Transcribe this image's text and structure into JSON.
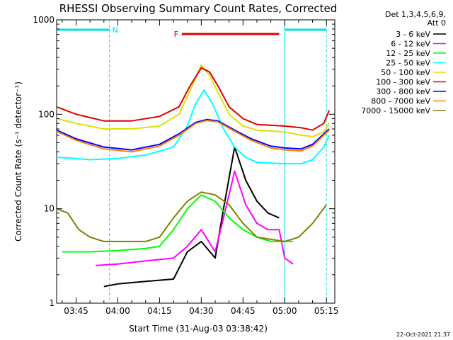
{
  "chart_data": {
    "type": "line",
    "title": "RHESSI Observing Summary Count Rates, Corrected",
    "xlabel": "Start Time (31-Aug-03 03:38:42)",
    "ylabel": "Corrected Count Rate (s⁻¹ detector⁻¹)",
    "yscale": "log",
    "ylim": [
      1,
      1000
    ],
    "xlim": [
      "03:38",
      "05:18"
    ],
    "x_ticks": [
      "03:45",
      "04:00",
      "04:15",
      "04:30",
      "04:45",
      "05:00",
      "05:15"
    ],
    "y_ticks": [
      "1",
      "10",
      "100",
      "1000"
    ],
    "legend_header": [
      "Det 1,3,4,5,6,9,",
      "Att 0"
    ],
    "legend_position": "right",
    "footer": "22-Oct-2021 21:37",
    "flags": [
      {
        "label": "N",
        "color": "#00e0e0",
        "spans": [
          [
            "03:38",
            "03:57"
          ],
          [
            "05:00",
            "05:15"
          ]
        ]
      },
      {
        "label": "F",
        "color": "#e00000",
        "spans": [
          [
            "04:23",
            "04:58"
          ]
        ]
      }
    ],
    "vertical_markers": [
      {
        "time": "03:57",
        "style": "dashed",
        "color": "#00e0e0"
      },
      {
        "time": "05:00",
        "style": "solid",
        "color": "#00e0e0"
      },
      {
        "time": "05:15",
        "style": "dashed",
        "color": "#00e0e0"
      }
    ],
    "series": [
      {
        "name": "3 - 6 keV",
        "color": "#000000",
        "x": [
          "03:55",
          "04:00",
          "04:10",
          "04:20",
          "04:25",
          "04:30",
          "04:35",
          "04:38",
          "04:42",
          "04:46",
          "04:50",
          "04:54",
          "04:58"
        ],
        "y": [
          1.5,
          1.6,
          1.7,
          1.8,
          3.5,
          4.5,
          3,
          10,
          45,
          20,
          12,
          9,
          8
        ]
      },
      {
        "name": "6 - 12 keV",
        "color": "#ff00ff",
        "x": [
          "03:52",
          "04:00",
          "04:10",
          "04:20",
          "04:25",
          "04:30",
          "04:35",
          "04:38",
          "04:42",
          "04:46",
          "04:50",
          "04:54",
          "04:58",
          "05:00",
          "05:03"
        ],
        "y": [
          2.5,
          2.6,
          2.8,
          3,
          4,
          6,
          3.5,
          8,
          25,
          11,
          7,
          6,
          6,
          3,
          2.6
        ]
      },
      {
        "name": "12 - 25 keV",
        "color": "#00ff00",
        "x": [
          "03:40",
          "03:50",
          "04:00",
          "04:10",
          "04:15",
          "04:20",
          "04:25",
          "04:30",
          "04:35",
          "04:40",
          "04:45",
          "04:50",
          "04:55",
          "05:00",
          "05:03"
        ],
        "y": [
          3.5,
          3.5,
          3.6,
          3.8,
          4,
          6,
          10,
          14,
          12,
          8,
          6,
          5,
          4.5,
          4.5,
          4.5
        ]
      },
      {
        "name": "25 - 50 keV",
        "color": "#00ffff",
        "x": [
          "03:38",
          "03:45",
          "03:50",
          "04:00",
          "04:10",
          "04:20",
          "04:25",
          "04:28",
          "04:31",
          "04:34",
          "04:38",
          "04:42",
          "04:46",
          "04:50",
          "05:00",
          "05:06",
          "05:10",
          "05:14",
          "05:16"
        ],
        "y": [
          35,
          34,
          33,
          34,
          37,
          45,
          75,
          130,
          180,
          130,
          70,
          45,
          35,
          31,
          30,
          30,
          33,
          45,
          60
        ]
      },
      {
        "name": "50 - 100 keV",
        "color": "#e0e000",
        "x": [
          "03:38",
          "03:45",
          "03:55",
          "04:05",
          "04:15",
          "04:22",
          "04:26",
          "04:30",
          "04:33",
          "04:36",
          "04:40",
          "04:45",
          "04:50",
          "05:00",
          "05:06",
          "05:10",
          "05:14",
          "05:16"
        ],
        "y": [
          90,
          80,
          70,
          70,
          75,
          100,
          180,
          330,
          260,
          170,
          100,
          75,
          68,
          65,
          60,
          58,
          65,
          80
        ]
      },
      {
        "name": "100 - 300 keV",
        "color": "#e00000",
        "x": [
          "03:38",
          "03:45",
          "03:55",
          "04:05",
          "04:15",
          "04:22",
          "04:26",
          "04:30",
          "04:33",
          "04:36",
          "04:40",
          "04:45",
          "04:50",
          "05:00",
          "05:06",
          "05:10",
          "05:14",
          "05:16"
        ],
        "y": [
          120,
          100,
          85,
          85,
          95,
          120,
          200,
          310,
          280,
          200,
          120,
          90,
          78,
          75,
          72,
          68,
          80,
          110
        ]
      },
      {
        "name": "300 - 800 keV",
        "color": "#0000ff",
        "x": [
          "03:38",
          "03:45",
          "03:55",
          "04:05",
          "04:15",
          "04:22",
          "04:28",
          "04:32",
          "04:36",
          "04:42",
          "04:48",
          "04:55",
          "05:00",
          "05:06",
          "05:10",
          "05:16"
        ],
        "y": [
          68,
          55,
          45,
          42,
          48,
          62,
          82,
          88,
          85,
          68,
          55,
          46,
          44,
          43,
          48,
          70
        ]
      },
      {
        "name": "800 - 7000 keV",
        "color": "#ff8000",
        "x": [
          "03:38",
          "03:45",
          "03:55",
          "04:05",
          "04:15",
          "04:22",
          "04:28",
          "04:32",
          "04:36",
          "04:42",
          "04:48",
          "04:55",
          "05:00",
          "05:06",
          "05:10",
          "05:16"
        ],
        "y": [
          66,
          53,
          43,
          40,
          46,
          60,
          80,
          86,
          83,
          66,
          53,
          44,
          42,
          41,
          46,
          68
        ]
      },
      {
        "name": "7000 - 15000 keV",
        "color": "#808000",
        "x": [
          "03:38",
          "03:42",
          "03:46",
          "03:50",
          "03:55",
          "04:00",
          "04:10",
          "04:15",
          "04:20",
          "04:25",
          "04:30",
          "04:35",
          "04:40",
          "04:45",
          "04:50",
          "05:00",
          "05:05",
          "05:10",
          "05:15"
        ],
        "y": [
          10,
          9,
          6,
          5,
          4.5,
          4.5,
          4.5,
          5,
          8,
          12,
          15,
          14,
          11,
          7,
          5,
          4.5,
          5,
          7,
          11
        ]
      }
    ]
  }
}
